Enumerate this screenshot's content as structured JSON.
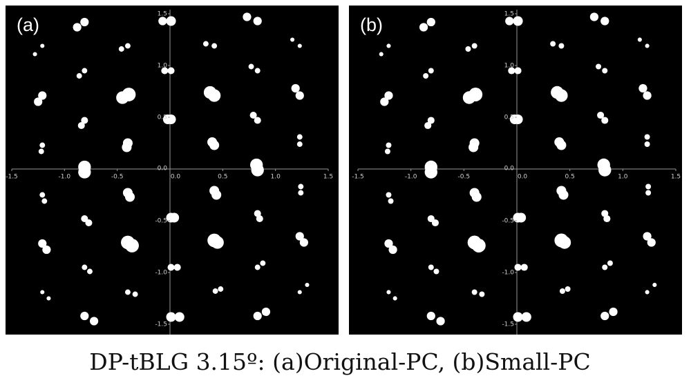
{
  "caption": "DP-tBLG 3.15º: (a)Original-PC, (b)Small-PC",
  "chart_data": [
    {
      "type": "scatter",
      "panel_label": "(a)",
      "color": "#ffffff",
      "x": [
        -0.88,
        -0.81,
        -0.07,
        0.01,
        0.73,
        0.83,
        -1.28,
        -1.21,
        -0.46,
        -0.4,
        0.34,
        0.42,
        1.16,
        1.23,
        -0.86,
        -0.81,
        -0.05,
        0.01,
        0.77,
        0.83,
        -1.25,
        -1.21,
        -0.45,
        -0.39,
        0.38,
        0.42,
        1.19,
        1.23,
        -0.84,
        -0.81,
        -0.02,
        0.01,
        0.79,
        0.83,
        -1.22,
        -1.21,
        -0.41,
        -0.4,
        0.4,
        0.42,
        1.23,
        1.23,
        -0.81,
        -0.81,
        0.82,
        0.83,
        -1.21,
        -1.19,
        -0.4,
        -0.38,
        0.42,
        0.44,
        1.24,
        1.24,
        -0.81,
        -0.77,
        0.01,
        0.04,
        0.83,
        0.85,
        -1.21,
        -1.17,
        -0.4,
        -0.36,
        0.42,
        0.45,
        1.23,
        1.27,
        -0.81,
        -0.76,
        0.01,
        0.07,
        0.83,
        0.88,
        -1.21,
        -1.15,
        -0.4,
        -0.33,
        0.43,
        0.48,
        1.23,
        1.3,
        -0.81,
        -0.72,
        0.01,
        0.09,
        0.83,
        0.91
      ],
      "values": [
        1.37,
        1.42,
        1.43,
        1.43,
        1.47,
        1.43,
        1.11,
        1.19,
        1.16,
        1.19,
        1.21,
        1.19,
        1.25,
        1.19,
        0.9,
        0.95,
        0.95,
        0.95,
        0.99,
        0.95,
        0.65,
        0.71,
        0.69,
        0.72,
        0.74,
        0.71,
        0.78,
        0.71,
        0.42,
        0.47,
        0.48,
        0.48,
        0.52,
        0.47,
        0.17,
        0.23,
        0.21,
        0.25,
        0.26,
        0.23,
        0.31,
        0.24,
        -0.03,
        0.02,
        0.04,
        -0.01,
        -0.25,
        -0.31,
        -0.23,
        -0.27,
        -0.21,
        -0.25,
        -0.17,
        -0.23,
        -0.48,
        -0.52,
        -0.47,
        -0.47,
        -0.43,
        -0.48,
        -0.72,
        -0.78,
        -0.71,
        -0.74,
        -0.69,
        -0.71,
        -0.65,
        -0.71,
        -0.95,
        -0.99,
        -0.95,
        -0.95,
        -0.95,
        -0.91,
        -1.19,
        -1.25,
        -1.19,
        -1.21,
        -1.18,
        -1.16,
        -1.19,
        -1.12,
        -1.42,
        -1.47,
        -1.43,
        -1.43,
        -1.42,
        -1.38
      ],
      "sizes": [
        0.04,
        0.04,
        0.04,
        0.046,
        0.04,
        0.04,
        0.02,
        0.02,
        0.026,
        0.026,
        0.026,
        0.026,
        0.02,
        0.02,
        0.026,
        0.026,
        0.033,
        0.033,
        0.026,
        0.026,
        0.04,
        0.04,
        0.06,
        0.065,
        0.06,
        0.06,
        0.04,
        0.04,
        0.033,
        0.033,
        0.046,
        0.046,
        0.033,
        0.033,
        0.026,
        0.026,
        0.046,
        0.046,
        0.046,
        0.046,
        0.026,
        0.026,
        0.06,
        0.06,
        0.06,
        0.06,
        0.026,
        0.026,
        0.046,
        0.046,
        0.046,
        0.046,
        0.026,
        0.026,
        0.033,
        0.033,
        0.046,
        0.046,
        0.033,
        0.033,
        0.04,
        0.04,
        0.065,
        0.065,
        0.065,
        0.06,
        0.04,
        0.04,
        0.026,
        0.026,
        0.033,
        0.033,
        0.026,
        0.026,
        0.02,
        0.02,
        0.026,
        0.026,
        0.026,
        0.026,
        0.02,
        0.02,
        0.04,
        0.04,
        0.046,
        0.046,
        0.04,
        0.04
      ],
      "xlim": [
        -1.5,
        1.5
      ],
      "ylim": [
        -1.5,
        1.5
      ],
      "xticks": [
        -1.5,
        {
          "value": -1.0,
          "label": "-1.0"
        },
        -0.5,
        {
          "value": 0,
          "label": "0.0"
        },
        0.5,
        {
          "value": 1.0,
          "label": "1.0"
        },
        1.5
      ],
      "yticks": [
        -1.5,
        {
          "value": -1.0,
          "label": "-1.0"
        },
        -0.5,
        {
          "value": 0,
          "label": "0.0"
        },
        0.5,
        {
          "value": 1.0,
          "label": "1.0"
        },
        1.5
      ]
    },
    {
      "type": "scatter",
      "panel_label": "(b)",
      "color": "#ffffff",
      "x": [
        -0.88,
        -0.81,
        -0.07,
        0.01,
        0.73,
        0.83,
        -1.28,
        -1.21,
        -0.46,
        -0.4,
        0.34,
        0.42,
        1.16,
        1.23,
        -0.86,
        -0.81,
        -0.05,
        0.01,
        0.77,
        0.83,
        -1.25,
        -1.21,
        -0.45,
        -0.39,
        0.38,
        0.42,
        1.19,
        1.23,
        -0.84,
        -0.81,
        -0.02,
        0.01,
        0.79,
        0.83,
        -1.22,
        -1.21,
        -0.41,
        -0.4,
        0.4,
        0.42,
        1.23,
        1.23,
        -0.81,
        -0.81,
        0.82,
        0.83,
        -1.21,
        -1.19,
        -0.4,
        -0.38,
        0.42,
        0.44,
        1.24,
        1.24,
        -0.81,
        -0.77,
        0.01,
        0.04,
        0.83,
        0.85,
        -1.21,
        -1.17,
        -0.4,
        -0.36,
        0.42,
        0.45,
        1.23,
        1.27,
        -0.81,
        -0.76,
        0.01,
        0.07,
        0.83,
        0.88,
        -1.21,
        -1.15,
        -0.4,
        -0.33,
        0.43,
        0.48,
        1.23,
        1.3,
        -0.81,
        -0.72,
        0.01,
        0.09,
        0.83,
        0.91
      ],
      "values": [
        1.37,
        1.42,
        1.43,
        1.43,
        1.47,
        1.43,
        1.11,
        1.19,
        1.16,
        1.19,
        1.21,
        1.19,
        1.25,
        1.19,
        0.9,
        0.95,
        0.95,
        0.95,
        0.99,
        0.95,
        0.65,
        0.71,
        0.69,
        0.72,
        0.74,
        0.71,
        0.78,
        0.71,
        0.42,
        0.47,
        0.48,
        0.48,
        0.52,
        0.47,
        0.17,
        0.23,
        0.21,
        0.25,
        0.26,
        0.23,
        0.31,
        0.24,
        -0.03,
        0.02,
        0.04,
        -0.01,
        -0.25,
        -0.31,
        -0.23,
        -0.27,
        -0.21,
        -0.25,
        -0.17,
        -0.23,
        -0.48,
        -0.52,
        -0.47,
        -0.47,
        -0.43,
        -0.48,
        -0.72,
        -0.78,
        -0.71,
        -0.74,
        -0.69,
        -0.71,
        -0.65,
        -0.71,
        -0.95,
        -0.99,
        -0.95,
        -0.95,
        -0.95,
        -0.91,
        -1.19,
        -1.25,
        -1.19,
        -1.21,
        -1.18,
        -1.16,
        -1.19,
        -1.12,
        -1.42,
        -1.47,
        -1.43,
        -1.43,
        -1.42,
        -1.38
      ],
      "sizes": [
        0.04,
        0.04,
        0.04,
        0.046,
        0.04,
        0.04,
        0.02,
        0.02,
        0.026,
        0.026,
        0.026,
        0.026,
        0.02,
        0.02,
        0.026,
        0.026,
        0.033,
        0.033,
        0.026,
        0.026,
        0.04,
        0.04,
        0.06,
        0.065,
        0.06,
        0.06,
        0.04,
        0.04,
        0.033,
        0.033,
        0.046,
        0.046,
        0.033,
        0.033,
        0.026,
        0.026,
        0.046,
        0.046,
        0.046,
        0.046,
        0.026,
        0.026,
        0.06,
        0.06,
        0.06,
        0.06,
        0.026,
        0.026,
        0.046,
        0.046,
        0.046,
        0.046,
        0.026,
        0.026,
        0.033,
        0.033,
        0.046,
        0.046,
        0.033,
        0.033,
        0.04,
        0.04,
        0.065,
        0.065,
        0.065,
        0.06,
        0.04,
        0.04,
        0.026,
        0.026,
        0.033,
        0.033,
        0.026,
        0.026,
        0.02,
        0.02,
        0.026,
        0.026,
        0.026,
        0.026,
        0.02,
        0.02,
        0.04,
        0.04,
        0.046,
        0.046,
        0.04,
        0.04
      ],
      "xlim": [
        -1.5,
        1.5
      ],
      "ylim": [
        -1.5,
        1.5
      ],
      "xticks": [
        -1.5,
        {
          "value": -1.0,
          "label": "-1.0"
        },
        -0.5,
        {
          "value": 0,
          "label": "0.0"
        },
        0.5,
        {
          "value": 1.0,
          "label": "1.0"
        },
        1.5
      ],
      "yticks": [
        -1.5,
        {
          "value": -1.0,
          "label": "-1.0"
        },
        -0.5,
        {
          "value": 0,
          "label": "0.0"
        },
        0.5,
        {
          "value": 1.0,
          "label": "1.0"
        },
        1.5
      ]
    }
  ]
}
